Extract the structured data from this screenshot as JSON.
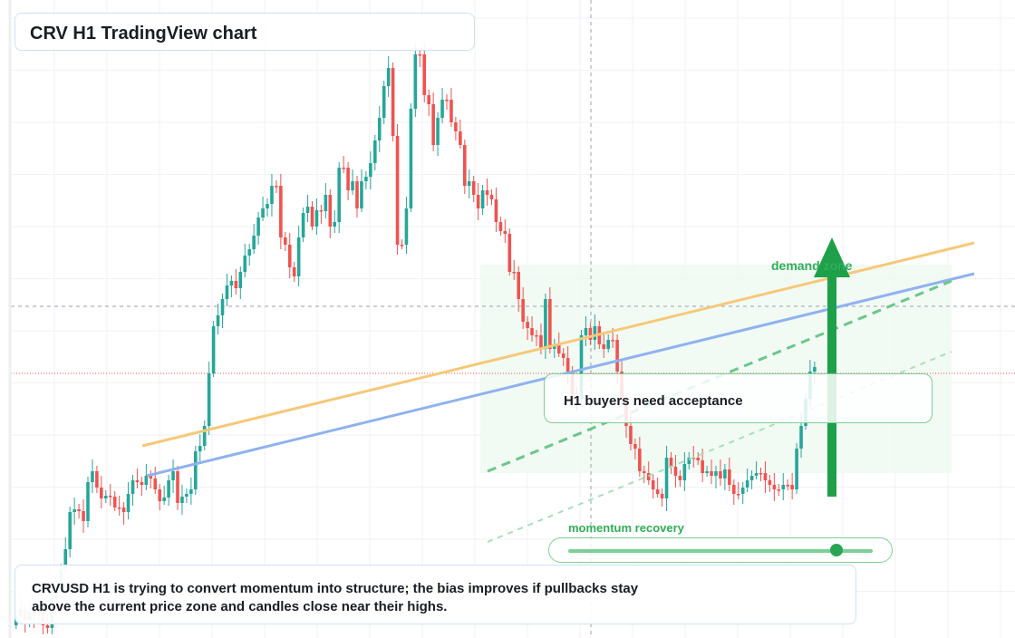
{
  "header": {
    "title": "CRV H1 TradingView chart"
  },
  "annotation": {
    "label": "H1 buyers need acceptance"
  },
  "zone": {
    "label": "demand zone"
  },
  "momentum": {
    "label": "momentum recovery",
    "level": 0.88
  },
  "note": {
    "text": "CRVUSD H1 is trying to convert momentum into structure; the bias improves if pullbacks stay above the current price zone and candles close near their highs."
  },
  "colors": {
    "up": "#26a69a",
    "down": "#ef5350",
    "orange_line": "#f6c878",
    "blue_line": "#8fb2ef",
    "green": "#2fae57",
    "zone_fill": "#eef9f0"
  },
  "icons": {
    "arrow": "up-arrow-icon"
  },
  "chart_data": {
    "type": "candlestick",
    "closes": [
      680,
      672,
      684,
      675,
      680,
      672,
      690,
      693,
      660,
      646,
      628,
      606,
      565,
      562,
      564,
      575,
      532,
      520,
      538,
      550,
      547,
      548,
      560,
      560,
      565,
      545,
      530,
      532,
      535,
      525,
      528,
      540,
      553,
      549,
      530,
      520,
      555,
      548,
      545,
      540,
      498,
      492,
      470,
      412,
      360,
      348,
      330,
      315,
      310,
      318,
      300,
      282,
      275,
      260,
      240,
      230,
      225,
      205,
      205,
      262,
      270,
      295,
      305,
      262,
      235,
      228,
      250,
      232,
      233,
      215,
      250,
      245,
      185,
      185,
      210,
      200,
      230,
      200,
      195,
      180,
      155,
      130,
      95,
      75,
      150,
      270,
      270,
      230,
      120,
      60,
      60,
      105,
      115,
      160,
      130,
      110,
      110,
      135,
      145,
      160,
      205,
      200,
      215,
      230,
      210,
      215,
      220,
      245,
      255,
      258,
      300,
      300,
      330,
      355,
      362,
      370,
      370,
      385,
      330,
      385,
      380,
      390,
      395,
      410,
      440,
      440,
      370,
      362,
      375,
      360,
      380,
      385,
      375,
      375,
      410,
      440,
      470,
      490,
      495,
      520,
      522,
      530,
      540,
      545,
      550,
      505,
      515,
      525,
      530,
      512,
      505,
      505,
      508,
      522,
      520,
      525,
      520,
      528,
      518,
      535,
      545,
      545,
      538,
      530,
      525,
      522,
      522,
      530,
      535,
      540,
      540,
      535,
      535,
      540,
      495,
      470,
      440,
      410,
      405
    ]
  }
}
